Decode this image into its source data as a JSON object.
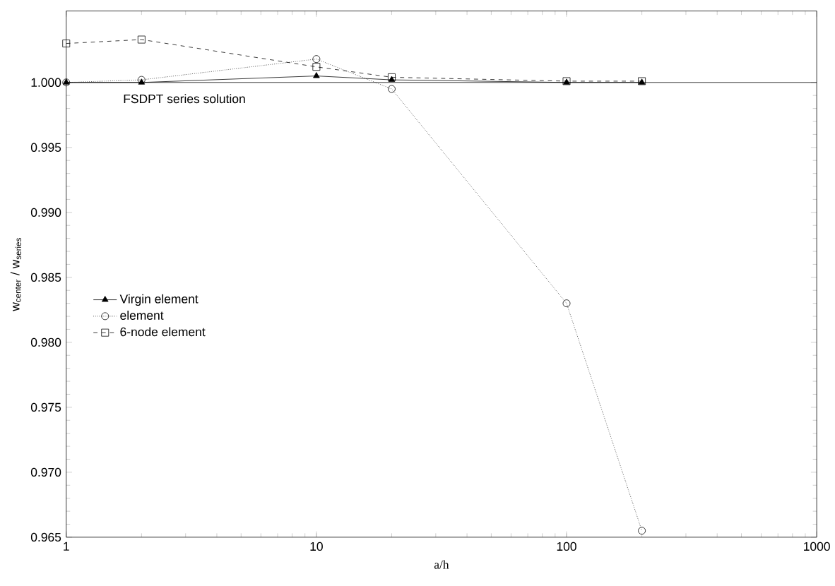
{
  "chart_data": {
    "type": "line",
    "xlabel": "a/h",
    "ylabel": "w$_{center}$ / w$_{series}$",
    "log": "x",
    "xlim": [
      1,
      1000
    ],
    "xticks": [
      1,
      10,
      100,
      1000
    ],
    "ylim": [
      0.965,
      1.0055
    ],
    "yticks": [
      {
        "value": 0.965,
        "label": "0.965"
      },
      {
        "value": 0.97,
        "label": "0.970"
      },
      {
        "value": 0.975,
        "label": "0.975"
      },
      {
        "value": 0.98,
        "label": "0.980"
      },
      {
        "value": 0.985,
        "label": "0.985"
      },
      {
        "value": 0.99,
        "label": "0.990"
      },
      {
        "value": 0.995,
        "label": "0.995"
      },
      {
        "value": 1.0,
        "label": "1.000"
      }
    ],
    "grid": false,
    "legend": "center left",
    "x": [
      1,
      2,
      10,
      20,
      100,
      200
    ],
    "series": [
      {
        "name": "Virgin element",
        "color": "#000000",
        "marker": "triangle",
        "line_style": "solid",
        "values": [
          1.0,
          1.0,
          1.0005,
          1.0002,
          1.0,
          1.0
        ]
      },
      {
        "name": "element",
        "color": "#000000",
        "marker": "circle",
        "line_style": "dotted",
        "values": [
          1.0,
          1.0002,
          1.0018,
          0.9995,
          0.983,
          0.9655
        ]
      },
      {
        "name": "6-node element",
        "color": "#000000",
        "marker": "square",
        "line_style": "dashed",
        "values": [
          1.003,
          1.0033,
          1.0012,
          1.0004,
          1.0001,
          1.0001
        ]
      }
    ],
    "ref_lines": [
      {
        "axis": "y",
        "value": 1.0,
        "label": "FSDPT series solution",
        "color": "#000000",
        "line_style": "solid"
      }
    ]
  }
}
